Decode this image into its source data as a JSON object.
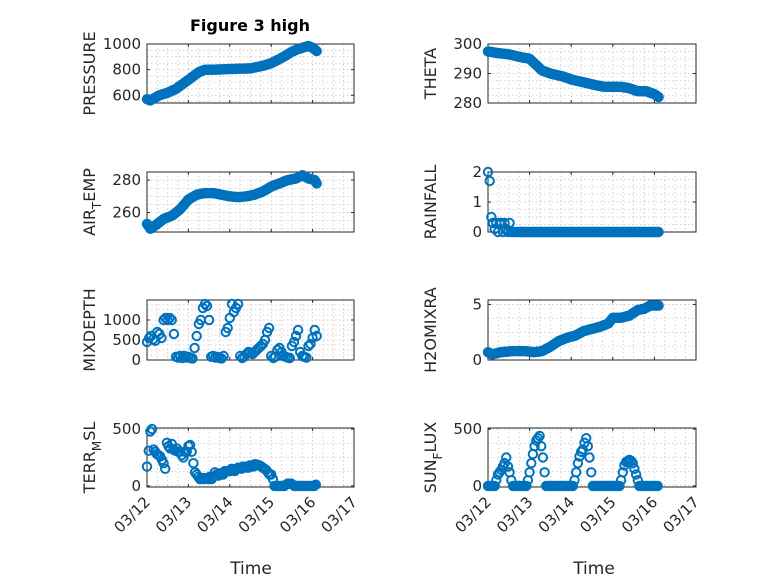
{
  "figure": {
    "title": "Figure 3 high",
    "xlabel": "Time",
    "x_ticks": [
      "03/12",
      "03/13",
      "03/14",
      "03/15",
      "03/16",
      "03/17"
    ],
    "marker_color": "#0072bd"
  },
  "chart_data": [
    {
      "id": "pressure",
      "type": "scatter",
      "marker": "circle",
      "ylabel": "PRESSURE",
      "ylim": [
        540,
        1000
      ],
      "yticks": [
        600,
        800,
        1000
      ],
      "xlim": [
        0,
        5
      ],
      "grid": true,
      "segments": [
        [
          0,
          570
        ],
        [
          0.08,
          560
        ],
        [
          0.3,
          600
        ],
        [
          0.5,
          620
        ],
        [
          0.7,
          650
        ],
        [
          1.0,
          720
        ],
        [
          1.25,
          780
        ],
        [
          1.4,
          800
        ],
        [
          1.6,
          800
        ],
        [
          2.0,
          805
        ],
        [
          2.5,
          810
        ],
        [
          2.8,
          830
        ],
        [
          3.0,
          850
        ],
        [
          3.3,
          900
        ],
        [
          3.5,
          940
        ],
        [
          3.65,
          960
        ],
        [
          3.8,
          975
        ],
        [
          3.9,
          985
        ],
        [
          4.0,
          970
        ],
        [
          4.1,
          945
        ]
      ]
    },
    {
      "id": "theta",
      "type": "scatter",
      "marker": "circle",
      "ylabel": "THETA",
      "ylim": [
        280,
        300
      ],
      "yticks": [
        280,
        290,
        300
      ],
      "xlim": [
        0,
        5
      ],
      "grid": true,
      "segments": [
        [
          0,
          297.5
        ],
        [
          0.2,
          297
        ],
        [
          0.5,
          296.5
        ],
        [
          0.8,
          295.5
        ],
        [
          1.0,
          295
        ],
        [
          1.15,
          293
        ],
        [
          1.3,
          291
        ],
        [
          1.5,
          290
        ],
        [
          1.8,
          289
        ],
        [
          2.0,
          288
        ],
        [
          2.3,
          287
        ],
        [
          2.6,
          286
        ],
        [
          2.8,
          285.5
        ],
        [
          3.0,
          285.5
        ],
        [
          3.2,
          285.5
        ],
        [
          3.4,
          285
        ],
        [
          3.6,
          284
        ],
        [
          3.8,
          284
        ],
        [
          4.0,
          283
        ],
        [
          4.1,
          282
        ]
      ]
    },
    {
      "id": "air_temp",
      "type": "scatter",
      "marker": "circle",
      "ylabel": "AIR",
      "ylabel_sub": "T",
      "ylabel_rest": "EMP",
      "ylim": [
        248,
        285
      ],
      "yticks": [
        260,
        280
      ],
      "xlim": [
        0,
        5
      ],
      "grid": true,
      "segments": [
        [
          0,
          253
        ],
        [
          0.08,
          250
        ],
        [
          0.2,
          252
        ],
        [
          0.4,
          256
        ],
        [
          0.6,
          258
        ],
        [
          0.8,
          262
        ],
        [
          1.0,
          268
        ],
        [
          1.2,
          271
        ],
        [
          1.4,
          272
        ],
        [
          1.6,
          272
        ],
        [
          1.8,
          271
        ],
        [
          2.0,
          270
        ],
        [
          2.2,
          269.5
        ],
        [
          2.4,
          270
        ],
        [
          2.6,
          271
        ],
        [
          2.8,
          273
        ],
        [
          3.0,
          276
        ],
        [
          3.2,
          278
        ],
        [
          3.4,
          280
        ],
        [
          3.6,
          281
        ],
        [
          3.75,
          283
        ],
        [
          3.9,
          281
        ],
        [
          4.05,
          280
        ],
        [
          4.1,
          278
        ]
      ]
    },
    {
      "id": "rainfall",
      "type": "scatter",
      "marker": "circle",
      "ylabel": "RAINFALL",
      "ylim": [
        0,
        2
      ],
      "yticks": [
        0,
        1,
        2
      ],
      "xlim": [
        0,
        5
      ],
      "grid": true,
      "x": [
        0.0,
        0.04,
        0.08,
        0.12,
        0.16,
        0.2,
        0.24,
        0.28,
        0.32,
        0.36,
        0.4,
        0.44,
        0.48,
        0.52,
        0.56,
        0.6,
        0.64,
        0.68,
        0.72,
        0.76,
        0.8
      ],
      "y": [
        2.0,
        1.7,
        0.5,
        0.3,
        0.1,
        0.3,
        0.0,
        0.3,
        0.3,
        0.0,
        0.3,
        0.1,
        0.0,
        0.3,
        0.0,
        0.0,
        0.0,
        0.0,
        0.0,
        0.0,
        0.0
      ],
      "baseline": {
        "from": 0.8,
        "to": 4.1,
        "y": 0
      }
    },
    {
      "id": "mixdepth",
      "type": "scatter",
      "marker": "circle",
      "ylabel": "MIXDEPTH",
      "ylim": [
        0,
        1500
      ],
      "yticks": [
        0,
        500,
        1000
      ],
      "xlim": [
        0,
        5
      ],
      "grid": true,
      "x": [
        0.0,
        0.05,
        0.1,
        0.15,
        0.2,
        0.25,
        0.3,
        0.35,
        0.4,
        0.45,
        0.5,
        0.55,
        0.6,
        0.65,
        0.7,
        0.75,
        0.8,
        0.85,
        0.9,
        0.95,
        1.0,
        1.05,
        1.1,
        1.15,
        1.2,
        1.25,
        1.3,
        1.35,
        1.4,
        1.45,
        1.5,
        1.55,
        1.6,
        1.65,
        1.7,
        1.75,
        1.8,
        1.85,
        1.9,
        1.95,
        2.0,
        2.05,
        2.1,
        2.15,
        2.2,
        2.25,
        2.3,
        2.35,
        2.4,
        2.45,
        2.5,
        2.55,
        2.6,
        2.65,
        2.7,
        2.75,
        2.8,
        2.85,
        2.9,
        2.95,
        3.0,
        3.05,
        3.1,
        3.15,
        3.2,
        3.25,
        3.3,
        3.35,
        3.4,
        3.45,
        3.5,
        3.55,
        3.6,
        3.65,
        3.7,
        3.75,
        3.8,
        3.85,
        3.9,
        3.95,
        4.0,
        4.05,
        4.1
      ],
      "y": [
        450,
        550,
        600,
        520,
        480,
        700,
        650,
        550,
        1000,
        1050,
        1000,
        1050,
        1000,
        650,
        80,
        60,
        100,
        50,
        100,
        60,
        80,
        50,
        40,
        300,
        600,
        900,
        1000,
        1300,
        1400,
        1350,
        1000,
        80,
        100,
        60,
        80,
        50,
        40,
        100,
        700,
        800,
        1050,
        1400,
        1200,
        1300,
        1400,
        100,
        50,
        80,
        150,
        200,
        180,
        150,
        200,
        250,
        300,
        350,
        400,
        500,
        700,
        800,
        100,
        50,
        80,
        250,
        300,
        200,
        100,
        80,
        60,
        50,
        350,
        450,
        600,
        750,
        200,
        100,
        80,
        60,
        350,
        400,
        550,
        750,
        600
      ]
    },
    {
      "id": "h2omixra",
      "type": "scatter",
      "marker": "circle",
      "ylabel": "H2OMIXRA",
      "ylim": [
        0,
        5.4
      ],
      "yticks": [
        0,
        5
      ],
      "xlim": [
        0,
        5
      ],
      "grid": true,
      "segments": [
        [
          0,
          0.7
        ],
        [
          0.1,
          0.5
        ],
        [
          0.3,
          0.7
        ],
        [
          0.6,
          0.8
        ],
        [
          0.9,
          0.8
        ],
        [
          1.1,
          0.7
        ],
        [
          1.3,
          0.8
        ],
        [
          1.5,
          1.2
        ],
        [
          1.7,
          1.7
        ],
        [
          1.9,
          2.0
        ],
        [
          2.1,
          2.2
        ],
        [
          2.3,
          2.6
        ],
        [
          2.5,
          2.8
        ],
        [
          2.7,
          3.0
        ],
        [
          2.9,
          3.3
        ],
        [
          3.0,
          3.8
        ],
        [
          3.2,
          3.8
        ],
        [
          3.4,
          4.0
        ],
        [
          3.6,
          4.5
        ],
        [
          3.75,
          4.6
        ],
        [
          3.9,
          4.9
        ],
        [
          4.0,
          4.9
        ],
        [
          4.1,
          4.9
        ]
      ]
    },
    {
      "id": "terr_msl",
      "type": "scatter",
      "marker": "circle",
      "ylabel": "TERR",
      "ylabel_sub": "M",
      "ylabel_rest": "SL",
      "ylim": [
        -10,
        510
      ],
      "yticks": [
        0,
        500
      ],
      "xlim": [
        0,
        5
      ],
      "grid": true,
      "x": [
        0.0,
        0.04,
        0.08,
        0.12,
        0.16,
        0.2,
        0.24,
        0.28,
        0.32,
        0.36,
        0.4,
        0.44,
        0.48,
        0.52,
        0.56,
        0.6,
        0.64,
        0.68,
        0.72,
        0.76,
        0.8,
        0.84,
        0.88,
        0.92,
        0.96,
        1.0,
        1.04,
        1.08,
        1.12,
        1.16,
        1.2,
        1.24,
        1.28,
        1.32,
        1.36,
        1.4,
        1.44,
        1.48,
        1.52,
        1.56,
        1.6,
        1.64,
        1.68,
        1.72,
        1.76,
        1.8,
        1.84,
        1.88,
        1.92,
        1.96,
        2.0,
        2.04,
        2.08,
        2.12,
        2.16,
        2.2,
        2.24,
        2.28,
        2.32,
        2.36,
        2.4,
        2.44,
        2.48,
        2.52,
        2.56,
        2.6,
        2.64,
        2.68,
        2.72,
        2.76,
        2.8,
        2.84,
        2.88,
        2.92,
        2.96,
        3.0,
        3.04,
        3.08,
        3.12,
        3.16,
        3.2,
        3.24,
        3.28,
        3.32,
        3.36,
        3.4,
        3.44,
        3.48,
        3.52,
        3.56,
        3.6,
        3.64,
        3.68,
        3.72,
        3.76,
        3.8,
        3.84,
        3.88,
        3.92,
        3.96,
        4.0,
        4.04,
        4.08
      ],
      "y": [
        170,
        310,
        480,
        500,
        320,
        300,
        280,
        270,
        260,
        230,
        200,
        150,
        380,
        350,
        330,
        370,
        320,
        310,
        330,
        300,
        300,
        270,
        250,
        300,
        300,
        350,
        360,
        300,
        200,
        120,
        100,
        80,
        60,
        60,
        70,
        60,
        70,
        60,
        80,
        60,
        80,
        120,
        100,
        90,
        110,
        100,
        100,
        130,
        130,
        130,
        130,
        150,
        140,
        130,
        150,
        160,
        160,
        150,
        170,
        160,
        170,
        160,
        180,
        180,
        170,
        190,
        190,
        180,
        180,
        170,
        160,
        150,
        140,
        120,
        100,
        100,
        60,
        0,
        0,
        0,
        0,
        0,
        0,
        0,
        10,
        20,
        20,
        20,
        10,
        0,
        0,
        0,
        0,
        0,
        0,
        0,
        0,
        0,
        0,
        0,
        0,
        0,
        10
      ]
    },
    {
      "id": "sun_flux",
      "type": "scatter",
      "marker": "circle",
      "ylabel": "SUN",
      "ylabel_sub": "F",
      "ylabel_rest": "LUX",
      "ylim": [
        -10,
        510
      ],
      "yticks": [
        0,
        500
      ],
      "xlim": [
        0,
        5
      ],
      "grid": true,
      "x": [
        0.0,
        0.04,
        0.08,
        0.12,
        0.16,
        0.2,
        0.24,
        0.28,
        0.32,
        0.36,
        0.4,
        0.44,
        0.48,
        0.52,
        0.56,
        0.6,
        0.64,
        0.68,
        0.72,
        0.76,
        0.8,
        0.84,
        0.88,
        0.92,
        0.96,
        1.0,
        1.04,
        1.08,
        1.12,
        1.16,
        1.2,
        1.24,
        1.28,
        1.32,
        1.36,
        1.4,
        1.44,
        1.48,
        1.52,
        1.56,
        1.6,
        1.64,
        1.68,
        1.72,
        1.76,
        1.8,
        1.84,
        1.88,
        1.92,
        1.96,
        2.0,
        2.04,
        2.08,
        2.12,
        2.16,
        2.2,
        2.24,
        2.28,
        2.32,
        2.36,
        2.4,
        2.44,
        2.48,
        2.52,
        2.56,
        2.6,
        2.64,
        2.68,
        2.72,
        2.76,
        2.8,
        2.84,
        2.88,
        2.92,
        2.96,
        3.0,
        3.04,
        3.08,
        3.12,
        3.16,
        3.2,
        3.24,
        3.28,
        3.32,
        3.36,
        3.4,
        3.44,
        3.48,
        3.52,
        3.56,
        3.6,
        3.64,
        3.68,
        3.72,
        3.76,
        3.8,
        3.84,
        3.88,
        3.92,
        3.96,
        4.0,
        4.04,
        4.08
      ],
      "y": [
        0,
        0,
        0,
        0,
        0,
        50,
        100,
        120,
        140,
        170,
        200,
        250,
        170,
        120,
        50,
        0,
        0,
        0,
        0,
        0,
        0,
        0,
        0,
        0,
        50,
        120,
        200,
        280,
        350,
        400,
        420,
        440,
        350,
        250,
        120,
        0,
        0,
        0,
        0,
        0,
        0,
        0,
        0,
        0,
        0,
        0,
        0,
        0,
        0,
        0,
        0,
        0,
        50,
        120,
        200,
        260,
        300,
        320,
        380,
        420,
        350,
        250,
        120,
        0,
        0,
        0,
        0,
        0,
        0,
        0,
        0,
        0,
        0,
        0,
        0,
        0,
        0,
        0,
        0,
        0,
        50,
        120,
        180,
        210,
        220,
        230,
        220,
        200,
        150,
        100,
        50,
        0,
        0,
        0,
        0,
        0,
        0,
        0,
        0,
        0,
        0,
        0,
        0
      ]
    }
  ]
}
